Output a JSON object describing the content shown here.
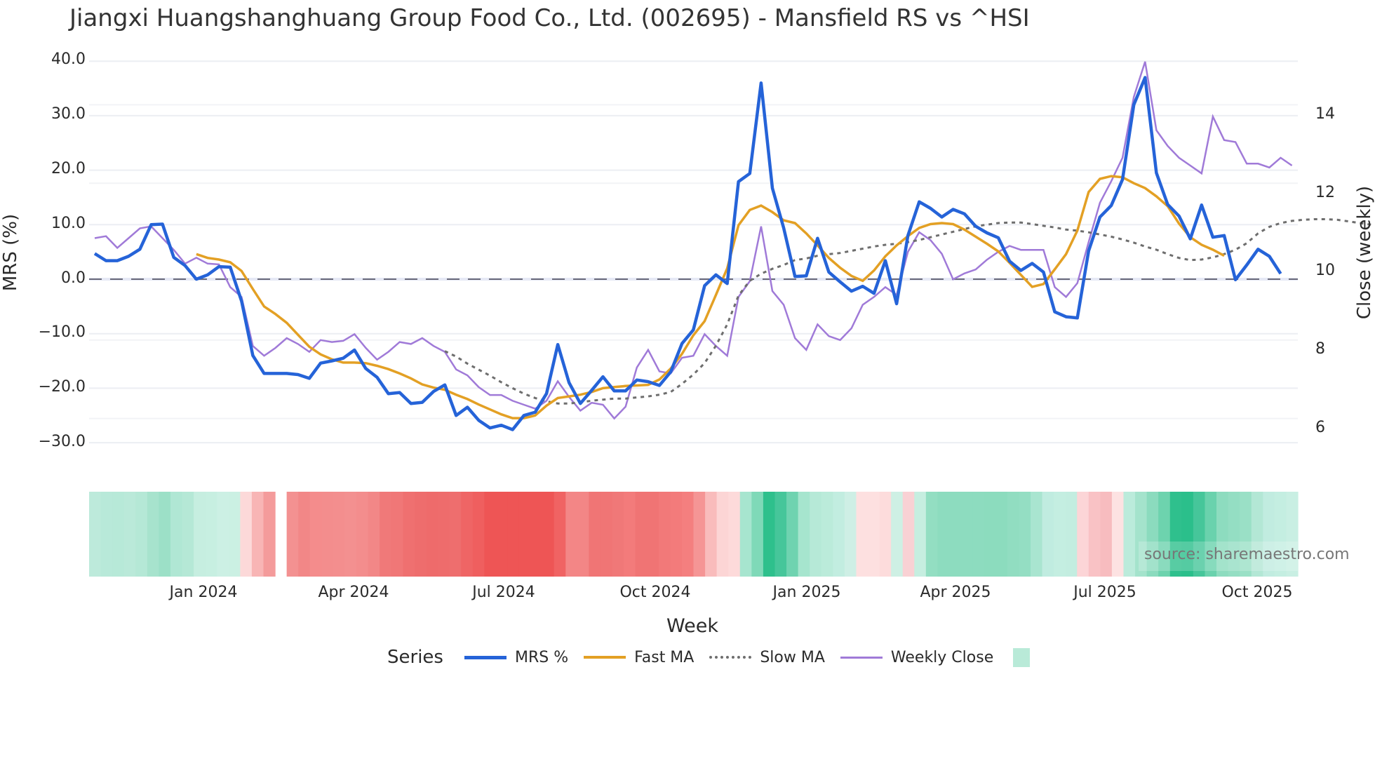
{
  "title": "Jiangxi Huangshanghuang Group Food Co., Ltd. (002695) - Mansfield RS vs ^HSI",
  "axes": {
    "left_label": "MRS (%)",
    "right_label": "Close (weekly)",
    "x_label": "Week",
    "left_ticks": [
      "40.0",
      "30.0",
      "20.0",
      "10.0",
      "0.0",
      "−10.0",
      "−20.0",
      "−30.0"
    ],
    "right_ticks": [
      "14",
      "12",
      "10",
      "8",
      "6"
    ],
    "x_ticks": [
      "Jan 2024",
      "Apr 2024",
      "Jul 2024",
      "Oct 2024",
      "Jan 2025",
      "Apr 2025",
      "Jul 2025",
      "Oct 2025"
    ]
  },
  "legend": {
    "title": "Series",
    "items": [
      "MRS %",
      "Fast MA",
      "Slow MA",
      "Weekly Close"
    ]
  },
  "watermark": "source: sharemaestro.com",
  "colors": {
    "mrs": "#2563d8",
    "fast_ma": "#e3a024",
    "slow_ma": "#6e6e6e",
    "weekly_close": "#a07ad8",
    "zero_line": "#6b6b7b",
    "heat_green_dark": "#2abf8b",
    "heat_red_dark": "#ef5350"
  },
  "chart_data": {
    "type": "line",
    "title": "Jiangxi Huangshanghuang Group Food Co., Ltd. (002695) - Mansfield RS vs ^HSI",
    "xlabel": "Week",
    "ylabel": "MRS (%)",
    "ylabel_right": "Close (weekly)",
    "ylim": [
      -33,
      42
    ],
    "ylim_right": [
      5.0,
      15.8
    ],
    "x_range": [
      "2023-10",
      "2025-10"
    ],
    "grid": true,
    "legend_position": "bottom",
    "series": [
      {
        "name": "MRS %",
        "axis": "left",
        "values": [
          4.7,
          3.4,
          3.4,
          4.2,
          5.5,
          10,
          10.1,
          4,
          2.5,
          0,
          0.8,
          2.3,
          2.2,
          -4,
          -14,
          -17.3,
          -17.3,
          -17.3,
          -17.5,
          -18.2,
          -15.4,
          -15,
          -14.5,
          -13,
          -16.4,
          -18,
          -21,
          -20.8,
          -22.8,
          -22.6,
          -20.6,
          -19.4,
          -25,
          -23.5,
          -25.9,
          -27.3,
          -26.8,
          -27.6,
          -25,
          -24.4,
          -21,
          -12,
          -19,
          -22.8,
          -20.4,
          -17.9,
          -20.5,
          -20.5,
          -18.5,
          -18.8,
          -19.5,
          -17,
          -11.8,
          -9.3,
          -1.2,
          0.8,
          -0.8,
          17.9,
          19.4,
          36,
          16.7,
          9.4,
          0.5,
          0.6,
          7.5,
          1.3,
          -0.5,
          -2.2,
          -1.3,
          -2.6,
          3.4,
          -4.5,
          8,
          14.2,
          13,
          11.4,
          12.8,
          12,
          9.7,
          8.5,
          7.6,
          3.3,
          1.6,
          2.9,
          1.3,
          -6,
          -6.9,
          -7.1,
          5.2,
          11.4,
          13.5,
          18.3,
          32,
          37,
          19.5,
          13.7,
          11.6,
          7.4,
          13.6,
          7.7,
          8,
          -0.1,
          2.6,
          5.5,
          4.2,
          1
        ]
      },
      {
        "name": "Fast MA",
        "axis": "left",
        "start_index": 9,
        "values": [
          4.6,
          3.9,
          3.6,
          3.1,
          1.5,
          -1.8,
          -5,
          -6.4,
          -8,
          -10.2,
          -12.4,
          -13.8,
          -14.7,
          -15.3,
          -15.3,
          -15.4,
          -15.9,
          -16.5,
          -17.3,
          -18.2,
          -19.3,
          -19.9,
          -20.3,
          -21.2,
          -22,
          -23,
          -23.9,
          -24.8,
          -25.5,
          -25.5,
          -25,
          -23.2,
          -21.8,
          -21.5,
          -21.2,
          -20.7,
          -20,
          -19.8,
          -19.6,
          -19.5,
          -19.4,
          -18.4,
          -16.4,
          -13.7,
          -10.3,
          -7.7,
          -2.9,
          2,
          9.9,
          12.7,
          13.5,
          12.3,
          10.8,
          10.3,
          8.4,
          6.2,
          3.9,
          2.1,
          0.6,
          -0.3,
          1.6,
          4.2,
          6.2,
          7.9,
          9.4,
          10.1,
          10.3,
          10.1,
          9.1,
          7.8,
          6.5,
          5.1,
          3,
          0.8,
          -1.4,
          -0.9,
          1.8,
          4.6,
          8.9,
          16,
          18.4,
          18.9,
          18.7,
          17.6,
          16.7,
          15.2,
          13.4,
          10.2,
          7.7,
          6.3,
          5.4,
          4.3
        ]
      },
      {
        "name": "Slow MA",
        "axis": "left",
        "start_index": 31,
        "values": [
          -13.2,
          -14.2,
          -15.5,
          -16.6,
          -17.7,
          -18.9,
          -20,
          -21,
          -21.8,
          -22.4,
          -22.8,
          -22.8,
          -22.6,
          -22.3,
          -22.1,
          -21.9,
          -21.9,
          -21.7,
          -21.5,
          -21.2,
          -20.7,
          -19.2,
          -17.5,
          -15.4,
          -12.2,
          -8.3,
          -3,
          -0.3,
          1,
          1.9,
          2.6,
          3.5,
          3.8,
          4.3,
          4.6,
          4.8,
          5.2,
          5.6,
          6,
          6.3,
          6.5,
          6.8,
          7.2,
          7.7,
          8.2,
          8.7,
          9.2,
          9.7,
          10,
          10.3,
          10.4,
          10.4,
          10.1,
          9.8,
          9.5,
          9.1,
          8.9,
          8.6,
          8.2,
          7.8,
          7.3,
          6.7,
          6,
          5.4,
          4.6,
          3.9,
          3.5,
          3.6,
          4,
          4.6,
          5.4,
          6.6,
          8.4,
          9.6,
          10.3,
          10.7,
          10.9,
          11,
          11,
          10.9,
          10.6,
          10.3,
          10,
          9.7,
          9.4,
          9.1,
          8.8,
          8.6,
          8.5,
          8.5
        ]
      },
      {
        "name": "Weekly Close",
        "axis": "right",
        "values": [
          10.6,
          10.65,
          10.35,
          10.6,
          10.85,
          10.9,
          10.6,
          10.3,
          9.95,
          10.1,
          9.95,
          9.93,
          9.35,
          9.1,
          7.85,
          7.6,
          7.8,
          8.05,
          7.9,
          7.7,
          8,
          7.95,
          7.98,
          8.15,
          7.8,
          7.5,
          7.7,
          7.95,
          7.9,
          8.05,
          7.85,
          7.7,
          7.25,
          7.1,
          6.8,
          6.6,
          6.6,
          6.45,
          6.35,
          6.25,
          6.45,
          6.95,
          6.55,
          6.2,
          6.4,
          6.35,
          6,
          6.3,
          7.3,
          7.75,
          7.2,
          7.15,
          7.55,
          7.6,
          8.15,
          7.85,
          7.6,
          9.1,
          9.5,
          10.9,
          9.25,
          8.9,
          8.05,
          7.75,
          8.4,
          8.1,
          8,
          8.3,
          8.9,
          9.1,
          9.35,
          9.15,
          10.25,
          10.75,
          10.55,
          10.2,
          9.55,
          9.7,
          9.8,
          10.05,
          10.25,
          10.4,
          10.3,
          10.3,
          10.3,
          9.35,
          9.1,
          9.45,
          10.5,
          11.5,
          12.05,
          12.65,
          14.2,
          15.1,
          13.35,
          12.95,
          12.65,
          12.45,
          12.25,
          13.7,
          13.1,
          13.05,
          12.5,
          12.5,
          12.4,
          12.65,
          12.45
        ]
      }
    ],
    "heatmap": {
      "description": "Weekly MRS regime band (green = positive RS, red = negative RS)",
      "cells": [
        "#bdeadb",
        "#b8e9d9",
        "#b7e9d8",
        "#bae9d9",
        "#b5e8d6",
        "#a7e3cd",
        "#9ce0c7",
        "#b0e7d4",
        "#b5e8d6",
        "#c6eee0",
        "#c7efe1",
        "#ccf0e4",
        "#cbf0e3",
        "#fcd9d9",
        "#f8b5b5",
        "#f49b9b",
        null,
        "#f39191",
        "#f28787",
        "#f48c8c",
        "#f38d8d",
        "#f38e8e",
        "#f39090",
        "#f38d8d",
        "#f28787",
        "#f07979",
        "#f07777",
        "#ef7070",
        "#ee6d6d",
        "#ee6b6b",
        "#ee6c6c",
        "#ee6e6e",
        "#ef6565",
        "#ef5f5f",
        "#ee5555",
        "#ee5555",
        "#ee5555",
        "#ee5555",
        "#ee5555",
        "#ee5555",
        "#f06363",
        "#f38686",
        "#f38686",
        "#f07575",
        "#f07575",
        "#f07878",
        "#f37b7b",
        "#f07474",
        "#f07474",
        "#f27979",
        "#f37b7b",
        "#f47f7f",
        "#f59595",
        "#f9bcbc",
        "#fcd5d5",
        "#fddada",
        "#a7e5cf",
        "#7fd9b8",
        "#2ec08c",
        "#46c69a",
        "#6fd3b0",
        "#a6e5ce",
        "#b6e9d7",
        "#bbebda",
        "#c2ede0",
        "#ceefe5",
        "#fde0e0",
        "#fde0e0",
        "#fddcdc",
        "#cef0e4",
        "#f9d1d4",
        "#c6eee0",
        "#93dec2",
        "#8ddcbf",
        "#8ddcbf",
        "#8ddcbf",
        "#8ddcbf",
        "#8cdcbe",
        "#8cdcbe",
        "#91ddc1",
        "#94dec3",
        "#a9e5d0",
        "#c0ece0",
        "#c4eee1",
        "#c3ede0",
        "#fcd5d7",
        "#f9c2c5",
        "#f7bcbf",
        "#fde2e2",
        "#bbebdb",
        "#a4e3cc",
        "#8bdbbe",
        "#6dd3ae",
        "#2fc08d",
        "#2bbf8b",
        "#46c69a",
        "#6ad2ad",
        "#8ddcbf",
        "#94dec3",
        "#9ae0c6",
        "#b3e7d5",
        "#c1ece0",
        "#c4eee1",
        "#c9efe3"
      ]
    }
  }
}
